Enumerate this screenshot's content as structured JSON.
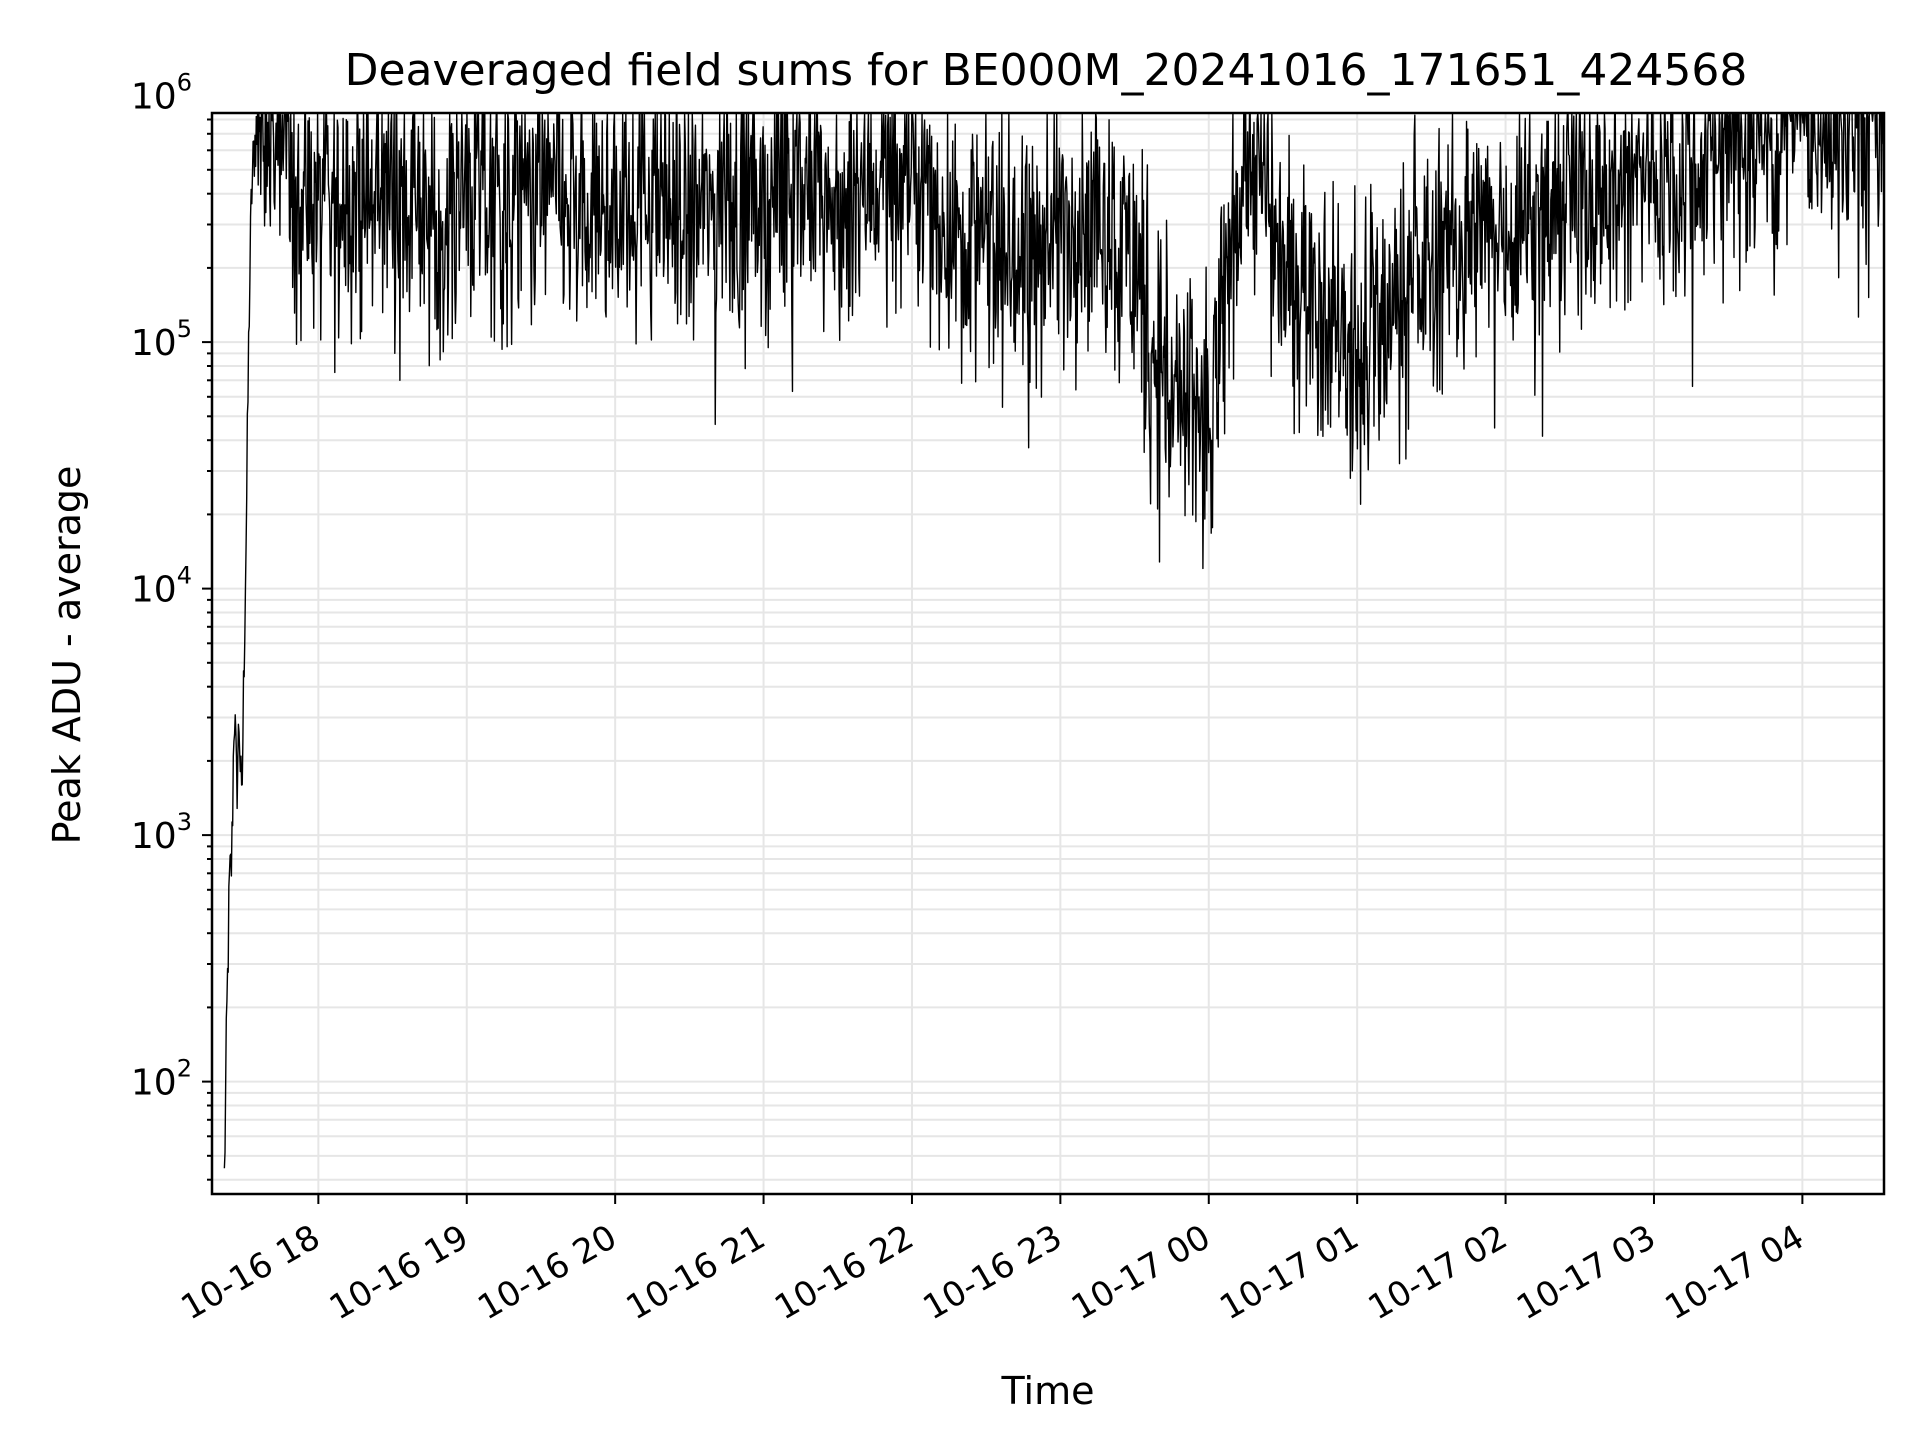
{
  "chart_data": {
    "type": "line",
    "title": "Deaveraged field sums for BE000M_20241016_171651_424568",
    "xlabel": "Time",
    "ylabel": "Peak ADU - average",
    "yscale": "log",
    "ylim": [
      35,
      850000
    ],
    "xlim": [
      "2024-10-16 17:17",
      "2024-10-17 04:33"
    ],
    "x_ticks": [
      {
        "label": "10-16 18",
        "time": "2024-10-16 18:00"
      },
      {
        "label": "10-16 19",
        "time": "2024-10-16 19:00"
      },
      {
        "label": "10-16 20",
        "time": "2024-10-16 20:00"
      },
      {
        "label": "10-16 21",
        "time": "2024-10-16 21:00"
      },
      {
        "label": "10-16 22",
        "time": "2024-10-16 22:00"
      },
      {
        "label": "10-16 23",
        "time": "2024-10-16 23:00"
      },
      {
        "label": "10-17 00",
        "time": "2024-10-17 00:00"
      },
      {
        "label": "10-17 01",
        "time": "2024-10-17 01:00"
      },
      {
        "label": "10-17 02",
        "time": "2024-10-17 02:00"
      },
      {
        "label": "10-17 03",
        "time": "2024-10-17 03:00"
      },
      {
        "label": "10-17 04",
        "time": "2024-10-17 04:00"
      }
    ],
    "y_ticks": [
      {
        "base": "10",
        "exp": "2",
        "value": 100
      },
      {
        "base": "10",
        "exp": "3",
        "value": 1000
      },
      {
        "base": "10",
        "exp": "4",
        "value": 10000
      },
      {
        "base": "10",
        "exp": "5",
        "value": 100000
      },
      {
        "base": "10",
        "exp": "6",
        "value": 1000000
      }
    ],
    "grid": true,
    "series": [
      {
        "color": "#000000",
        "x": [
          "2024-10-16 17:22",
          "2024-10-16 17:23",
          "2024-10-16 17:24",
          "2024-10-16 17:25",
          "2024-10-16 17:26",
          "2024-10-16 17:27",
          "2024-10-16 17:28",
          "2024-10-16 17:29",
          "2024-10-16 17:30",
          "2024-10-16 17:31",
          "2024-10-16 17:32",
          "2024-10-16 17:33",
          "2024-10-16 17:34",
          "2024-10-16 17:36",
          "2024-10-16 17:38",
          "2024-10-16 17:40",
          "2024-10-16 17:43",
          "2024-10-16 17:46",
          "2024-10-16 17:50",
          "2024-10-16 17:55",
          "2024-10-16 18:00",
          "2024-10-16 18:05",
          "2024-10-16 18:10",
          "2024-10-16 18:20",
          "2024-10-16 18:30",
          "2024-10-16 18:45",
          "2024-10-16 19:00",
          "2024-10-16 19:15",
          "2024-10-16 19:30",
          "2024-10-16 19:45",
          "2024-10-16 20:00",
          "2024-10-16 20:15",
          "2024-10-16 20:30",
          "2024-10-16 20:45",
          "2024-10-16 21:00",
          "2024-10-16 21:15",
          "2024-10-16 21:30",
          "2024-10-16 21:45",
          "2024-10-16 22:00",
          "2024-10-16 22:15",
          "2024-10-16 22:30",
          "2024-10-16 22:45",
          "2024-10-16 23:00",
          "2024-10-16 23:15",
          "2024-10-16 23:30",
          "2024-10-16 23:45",
          "2024-10-17 00:00",
          "2024-10-17 00:15",
          "2024-10-17 00:30",
          "2024-10-17 00:45",
          "2024-10-17 01:00",
          "2024-10-17 01:15",
          "2024-10-17 01:30",
          "2024-10-17 01:45",
          "2024-10-17 02:00",
          "2024-10-17 02:15",
          "2024-10-17 02:30",
          "2024-10-17 02:45",
          "2024-10-17 03:00",
          "2024-10-17 03:15",
          "2024-10-17 03:30",
          "2024-10-17 03:45",
          "2024-10-17 04:00",
          "2024-10-17 04:15",
          "2024-10-17 04:33"
        ],
        "y": [
          40,
          180,
          600,
          800,
          3500,
          1500,
          3000,
          1200,
          5500,
          22000,
          130000,
          400000,
          600000,
          900000,
          700000,
          1000000,
          500000,
          800000,
          300000,
          400000,
          350000,
          300000,
          400000,
          350000,
          450000,
          300000,
          400000,
          350000,
          450000,
          300000,
          350000,
          400000,
          300000,
          400000,
          350000,
          450000,
          300000,
          500000,
          450000,
          300000,
          250000,
          200000,
          300000,
          350000,
          200000,
          60000,
          40000,
          700000,
          200000,
          150000,
          80000,
          150000,
          200000,
          250000,
          300000,
          350000,
          450000,
          400000,
          500000,
          550000,
          650000,
          700000,
          900000,
          750000,
          850000
        ]
      }
    ]
  }
}
